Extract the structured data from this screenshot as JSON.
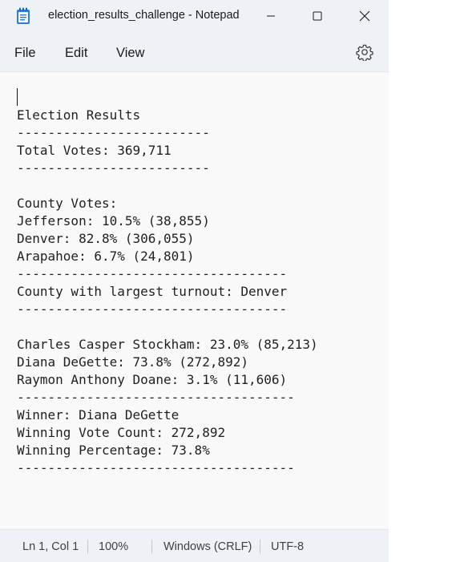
{
  "window": {
    "title": "election_results_challenge - Notepad",
    "icon": "notepad-icon"
  },
  "controls": {
    "minimize_icon": "minimize-icon",
    "maximize_icon": "maximize-icon",
    "close_icon": "close-icon"
  },
  "menu": {
    "file": "File",
    "edit": "Edit",
    "view": "View",
    "settings_icon": "gear-icon"
  },
  "editor": {
    "content": "Election Results\n-------------------------\nTotal Votes: 369,711\n-------------------------\n\nCounty Votes:\nJefferson: 10.5% (38,855)\nDenver: 82.8% (306,055)\nArapahoe: 6.7% (24,801)\n-----------------------------------\nCounty with largest turnout: Denver\n-----------------------------------\n\nCharles Casper Stockham: 23.0% (85,213)\nDiana DeGette: 73.8% (272,892)\nRaymon Anthony Doane: 3.1% (11,606)\n------------------------------------\nWinner: Diana DeGette\nWinning Vote Count: 272,892\nWinning Percentage: 73.8%\n------------------------------------"
  },
  "status": {
    "position": "Ln 1, Col 1",
    "zoom": "100%",
    "line_endings": "Windows (CRLF)",
    "encoding": "UTF-8"
  },
  "colors": {
    "chrome": "#eef2f6",
    "editor_bg": "#f9f9f9",
    "text": "#1f1f1f",
    "icon_blue": "#1e6fd0"
  }
}
